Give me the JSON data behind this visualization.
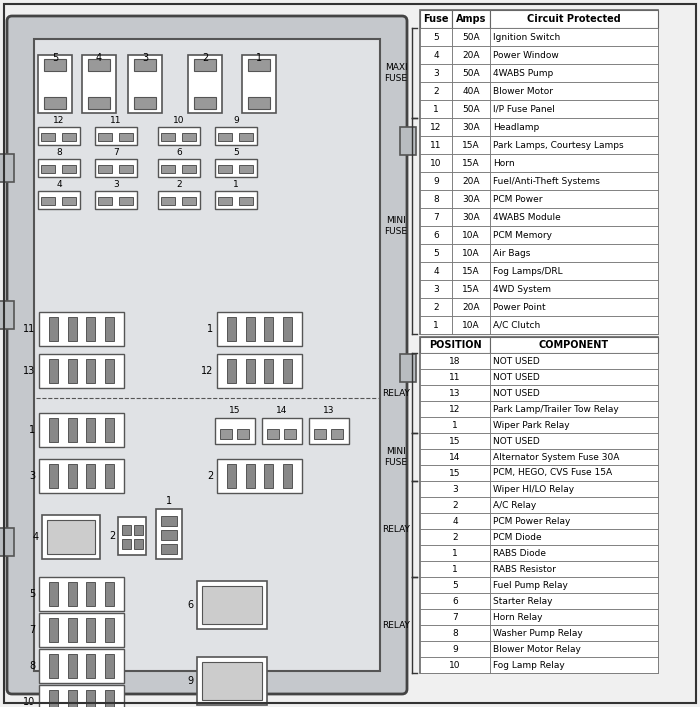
{
  "bg_color": "#f0f0f0",
  "box_bg": "#e8e8e8",
  "inner_bg": "#f5f5f5",
  "white": "#ffffff",
  "border_dark": "#333333",
  "border_med": "#666666",
  "gray_fill": "#aaaaaa",
  "table1_headers": [
    "Fuse",
    "Amps",
    "Circuit Protected"
  ],
  "table1_data": [
    [
      "5",
      "50A",
      "Ignition Switch"
    ],
    [
      "4",
      "20A",
      "Power Window"
    ],
    [
      "3",
      "50A",
      "4WABS Pump"
    ],
    [
      "2",
      "40A",
      "Blower Motor"
    ],
    [
      "1",
      "50A",
      "I/P Fuse Panel"
    ],
    [
      "12",
      "30A",
      "Headlamp"
    ],
    [
      "11",
      "15A",
      "Park Lamps, Courtesy Lamps"
    ],
    [
      "10",
      "15A",
      "Horn"
    ],
    [
      "9",
      "20A",
      "Fuel/Anti-Theft Systems"
    ],
    [
      "8",
      "30A",
      "PCM Power"
    ],
    [
      "7",
      "30A",
      "4WABS Module"
    ],
    [
      "6",
      "10A",
      "PCM Memory"
    ],
    [
      "5",
      "10A",
      "Air Bags"
    ],
    [
      "4",
      "15A",
      "Fog Lamps/DRL"
    ],
    [
      "3",
      "15A",
      "4WD System"
    ],
    [
      "2",
      "20A",
      "Power Point"
    ],
    [
      "1",
      "10A",
      "A/C Clutch"
    ]
  ],
  "table2_headers": [
    "POSITION",
    "COMPONENT"
  ],
  "table2_data": [
    [
      "18",
      "NOT USED"
    ],
    [
      "11",
      "NOT USED"
    ],
    [
      "13",
      "NOT USED"
    ],
    [
      "12",
      "Park Lamp/Trailer Tow Relay"
    ],
    [
      "1",
      "Wiper Park Relay"
    ],
    [
      "15",
      "NOT USED"
    ],
    [
      "14",
      "Alternator System Fuse 30A"
    ],
    [
      "15",
      "PCM, HEGO, CVS Fuse 15A"
    ],
    [
      "3",
      "Wiper HI/LO Relay"
    ],
    [
      "2",
      "A/C Relay"
    ],
    [
      "4",
      "PCM Power Relay"
    ],
    [
      "2",
      "PCM Diode"
    ],
    [
      "1",
      "RABS Diode"
    ],
    [
      "1",
      "RABS Resistor"
    ],
    [
      "5",
      "Fuel Pump Relay"
    ],
    [
      "6",
      "Starter Relay"
    ],
    [
      "7",
      "Horn Relay"
    ],
    [
      "8",
      "Washer Pump Relay"
    ],
    [
      "9",
      "Blower Motor Relay"
    ],
    [
      "10",
      "Fog Lamp Relay"
    ]
  ]
}
